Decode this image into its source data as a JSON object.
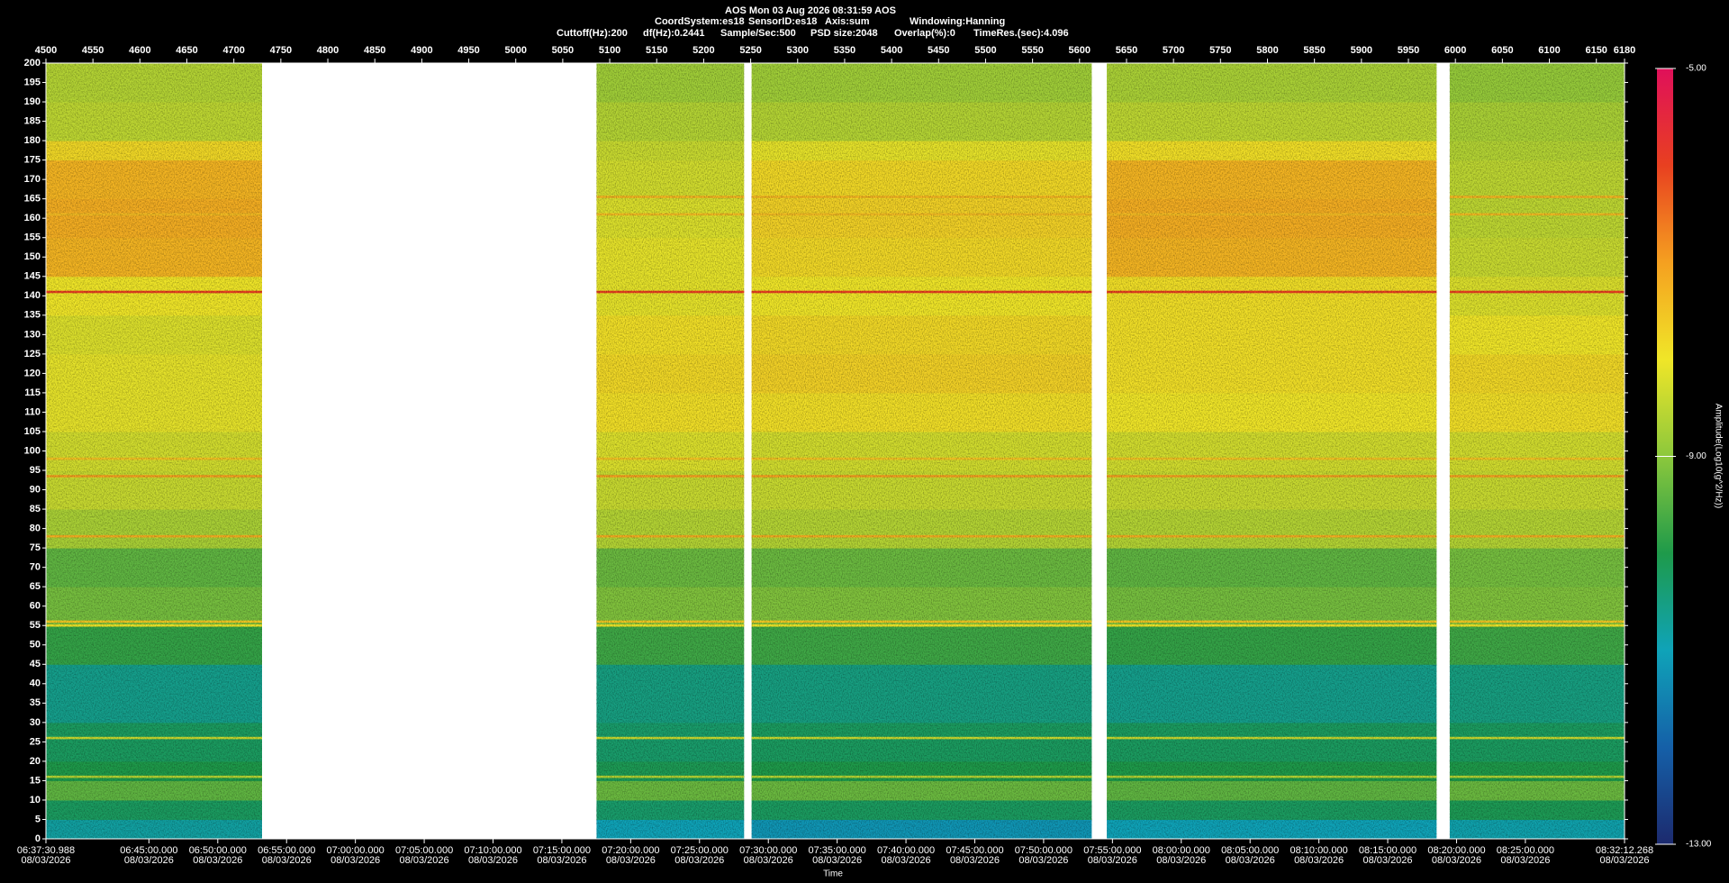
{
  "chart_data": {
    "type": "spectrogram",
    "title": "AOS  Mon 03 Aug 2026 08:31:59  AOS",
    "info": [
      "CoordSystem:es18",
      "SensorID:es18",
      "Axis:sum",
      "Windowing:Hanning"
    ],
    "settings": [
      "Cuttoff(Hz):200",
      "df(Hz):0.2441",
      "Sample/Sec:500",
      "PSD size:2048",
      "Overlap(%):0",
      "TimeRes.(sec):4.096"
    ],
    "xlim": [
      4500,
      6180
    ],
    "xticks": [
      4500,
      4550,
      4600,
      4650,
      4700,
      4750,
      4800,
      4850,
      4900,
      4950,
      5000,
      5050,
      5100,
      5150,
      5200,
      5250,
      5300,
      5350,
      5400,
      5450,
      5500,
      5550,
      5600,
      5650,
      5700,
      5750,
      5800,
      5850,
      5900,
      5950,
      6000,
      6050,
      6100,
      6150,
      6180
    ],
    "ylim": [
      0,
      200
    ],
    "yticks": [
      0,
      5,
      10,
      15,
      20,
      25,
      30,
      35,
      40,
      45,
      50,
      55,
      60,
      65,
      70,
      75,
      80,
      85,
      90,
      95,
      100,
      105,
      110,
      115,
      120,
      125,
      130,
      135,
      140,
      145,
      150,
      155,
      160,
      165,
      170,
      175,
      180,
      185,
      190,
      195,
      200
    ],
    "time_label": "Time",
    "time_lim": [
      23850.988,
      30732.268
    ],
    "time_ticks": [
      {
        "value": 23850.988,
        "label": "06:37:30.988",
        "date": "08/03/2026"
      },
      {
        "value": 24300,
        "label": "06:45:00.000",
        "date": "08/03/2026"
      },
      {
        "value": 24600,
        "label": "06:50:00.000",
        "date": "08/03/2026"
      },
      {
        "value": 24900,
        "label": "06:55:00.000",
        "date": "08/03/2026"
      },
      {
        "value": 25200,
        "label": "07:00:00.000",
        "date": "08/03/2026"
      },
      {
        "value": 25500,
        "label": "07:05:00.000",
        "date": "08/03/2026"
      },
      {
        "value": 25800,
        "label": "07:10:00.000",
        "date": "08/03/2026"
      },
      {
        "value": 26100,
        "label": "07:15:00.000",
        "date": "08/03/2026"
      },
      {
        "value": 26400,
        "label": "07:20:00.000",
        "date": "08/03/2026"
      },
      {
        "value": 26700,
        "label": "07:25:00.000",
        "date": "08/03/2026"
      },
      {
        "value": 27000,
        "label": "07:30:00.000",
        "date": "08/03/2026"
      },
      {
        "value": 27300,
        "label": "07:35:00.000",
        "date": "08/03/2026"
      },
      {
        "value": 27600,
        "label": "07:40:00.000",
        "date": "08/03/2026"
      },
      {
        "value": 27900,
        "label": "07:45:00.000",
        "date": "08/03/2026"
      },
      {
        "value": 28200,
        "label": "07:50:00.000",
        "date": "08/03/2026"
      },
      {
        "value": 28500,
        "label": "07:55:00.000",
        "date": "08/03/2026"
      },
      {
        "value": 28800,
        "label": "08:00:00.000",
        "date": "08/03/2026"
      },
      {
        "value": 29100,
        "label": "08:05:00.000",
        "date": "08/03/2026"
      },
      {
        "value": 29400,
        "label": "08:10:00.000",
        "date": "08/03/2026"
      },
      {
        "value": 29700,
        "label": "08:15:00.000",
        "date": "08/03/2026"
      },
      {
        "value": 30000,
        "label": "08:20:00.000",
        "date": "08/03/2026"
      },
      {
        "value": 30300,
        "label": "08:25:00.000",
        "date": "08/03/2026"
      },
      {
        "value": 30732.268,
        "label": "08:32:12.268",
        "date": "08/03/2026"
      }
    ],
    "colorbar_label": "Amplitude(Log10(g^2/Hz))",
    "clim": [
      -13,
      -5
    ],
    "cticks": [
      {
        "value": -5,
        "label": "-5.00"
      },
      {
        "value": -9,
        "label": "-9.00"
      },
      {
        "value": -13,
        "label": "-13.00"
      }
    ],
    "colormap": [
      "#1c2a6e",
      "#1560a8",
      "#0fa3b8",
      "#1e9a4a",
      "#8cc83c",
      "#f0e628",
      "#f5a020",
      "#e84020",
      "#e0105a"
    ],
    "bands": [
      0,
      5,
      10,
      15,
      20,
      30,
      45,
      55,
      65,
      75,
      85,
      95,
      105,
      115,
      125,
      135,
      145,
      155,
      165,
      175,
      180,
      190,
      200
    ],
    "segments": [
      {
        "range": [
          4500,
          4730
        ],
        "values": [
          -10.8,
          -10.2,
          -9.4,
          -10.0,
          -10.2,
          -10.6,
          -9.8,
          -9.2,
          -9.4,
          -8.7,
          -8.4,
          -8.3,
          -8.1,
          -8.1,
          -8.2,
          -8.0,
          -7.3,
          -7.2,
          -7.3,
          -7.8,
          -8.5,
          -8.6
        ]
      },
      {
        "range": [
          5086,
          5243
        ],
        "values": [
          -11.0,
          -10.3,
          -9.3,
          -10.1,
          -10.3,
          -10.5,
          -9.7,
          -9.1,
          -9.3,
          -8.6,
          -8.4,
          -8.2,
          -7.9,
          -7.8,
          -7.9,
          -8.1,
          -8.1,
          -8.2,
          -8.3,
          -8.4,
          -8.6,
          -8.8
        ]
      },
      {
        "range": [
          5251,
          5613
        ],
        "values": [
          -11.2,
          -10.2,
          -9.3,
          -10.0,
          -10.2,
          -10.5,
          -9.7,
          -9.1,
          -9.3,
          -8.6,
          -8.4,
          -8.3,
          -7.9,
          -7.7,
          -7.8,
          -8.0,
          -7.8,
          -7.7,
          -7.8,
          -8.1,
          -8.6,
          -8.8
        ]
      },
      {
        "range": [
          5629,
          5980
        ],
        "values": [
          -11.0,
          -10.2,
          -9.4,
          -10.0,
          -10.2,
          -10.6,
          -9.8,
          -9.2,
          -9.4,
          -8.6,
          -8.4,
          -8.3,
          -8.0,
          -7.9,
          -7.9,
          -7.9,
          -7.3,
          -7.2,
          -7.3,
          -7.9,
          -8.5,
          -8.7
        ]
      },
      {
        "range": [
          5994,
          6180
        ],
        "values": [
          -10.9,
          -10.1,
          -9.3,
          -10.0,
          -10.2,
          -10.5,
          -9.7,
          -9.1,
          -9.2,
          -8.6,
          -8.4,
          -8.3,
          -7.9,
          -7.8,
          -8.0,
          -8.2,
          -8.4,
          -8.5,
          -8.5,
          -8.6,
          -8.7,
          -8.9
        ]
      }
    ],
    "lines": {
      "freq": [
        141,
        93.5,
        78,
        98,
        56,
        55,
        26,
        16,
        161,
        165.5
      ],
      "amplitude": [
        -6.0,
        -7.0,
        -7.2,
        -7.5,
        -7.6,
        -8.0,
        -8.4,
        -8.6,
        -7.4,
        -7.3
      ]
    }
  }
}
